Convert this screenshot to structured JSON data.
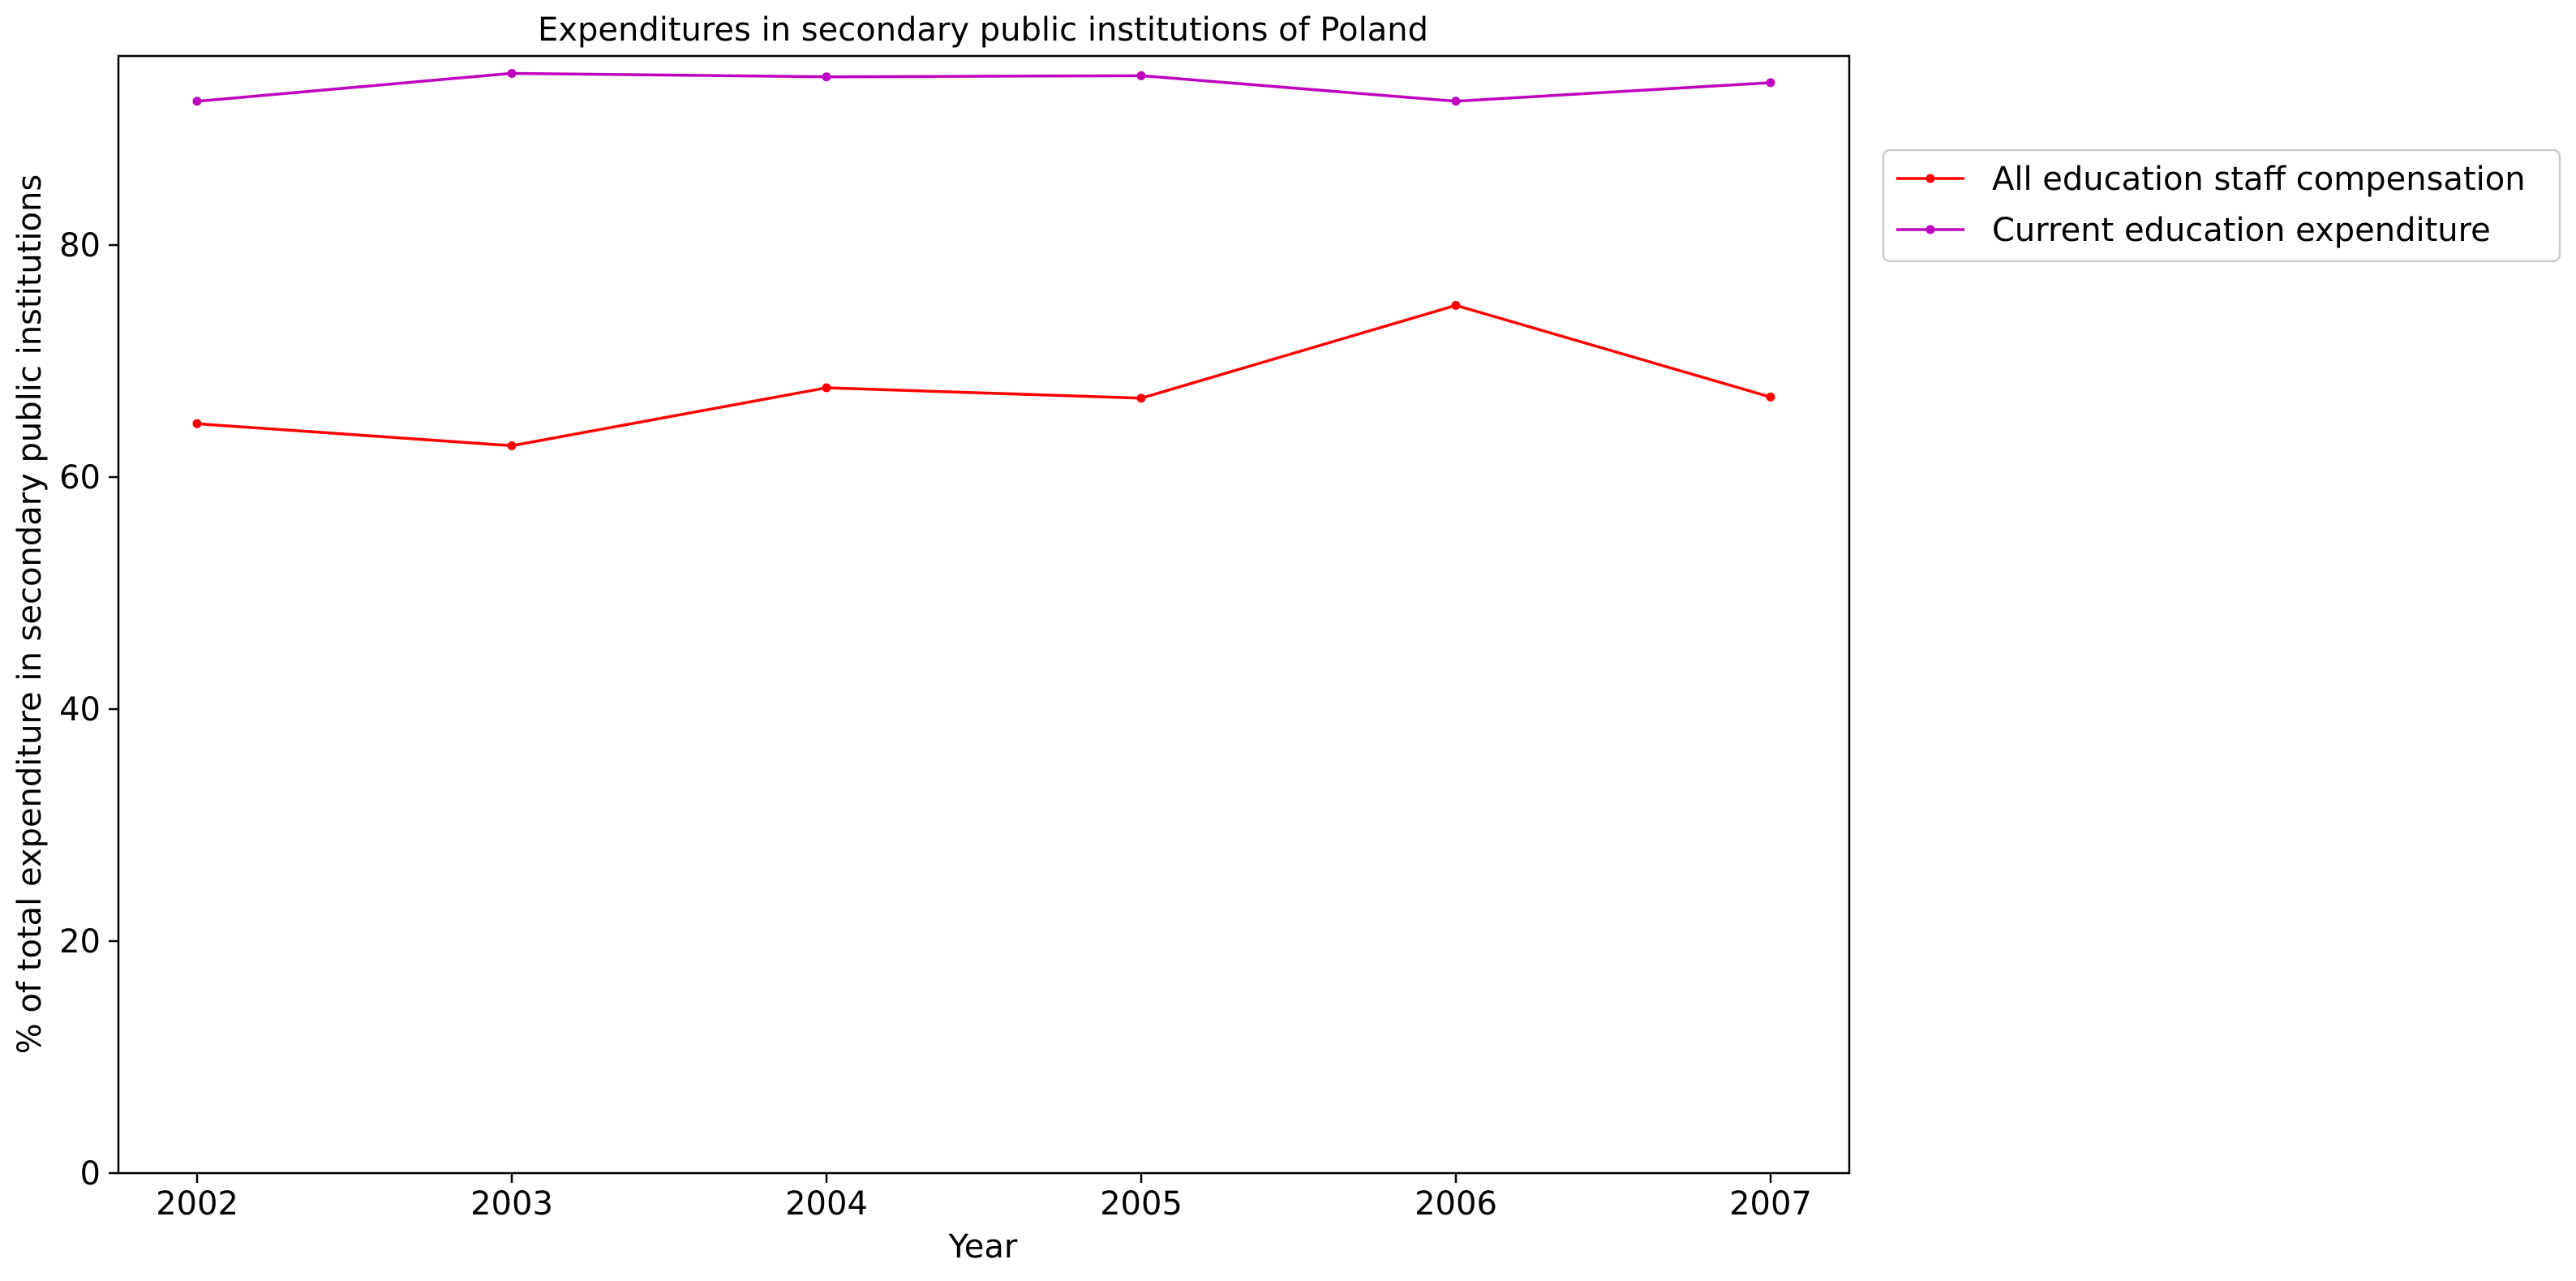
{
  "chart_data": {
    "type": "line",
    "title": "Expenditures in secondary public institutions of Poland",
    "xlabel": "Year",
    "ylabel": "% of total expenditure in secondary public institutions",
    "x": [
      "2002",
      "2003",
      "2004",
      "2005",
      "2006",
      "2007"
    ],
    "xlim": [
      2001.75,
      2007.25
    ],
    "ylim": [
      0,
      96.3
    ],
    "yticks": [
      "0",
      "20",
      "40",
      "60",
      "80"
    ],
    "grid": false,
    "legend_position": "upper right, outside plot",
    "series": [
      {
        "name": "All education staff compensation",
        "color": "#ff0000",
        "marker": "circle",
        "values": [
          64.6,
          62.7,
          67.7,
          66.8,
          74.8,
          66.9
        ]
      },
      {
        "name": "Current education expenditure",
        "color": "#bf00bf",
        "marker": "circle",
        "values": [
          92.4,
          94.8,
          94.5,
          94.6,
          92.4,
          94.0
        ]
      }
    ]
  }
}
